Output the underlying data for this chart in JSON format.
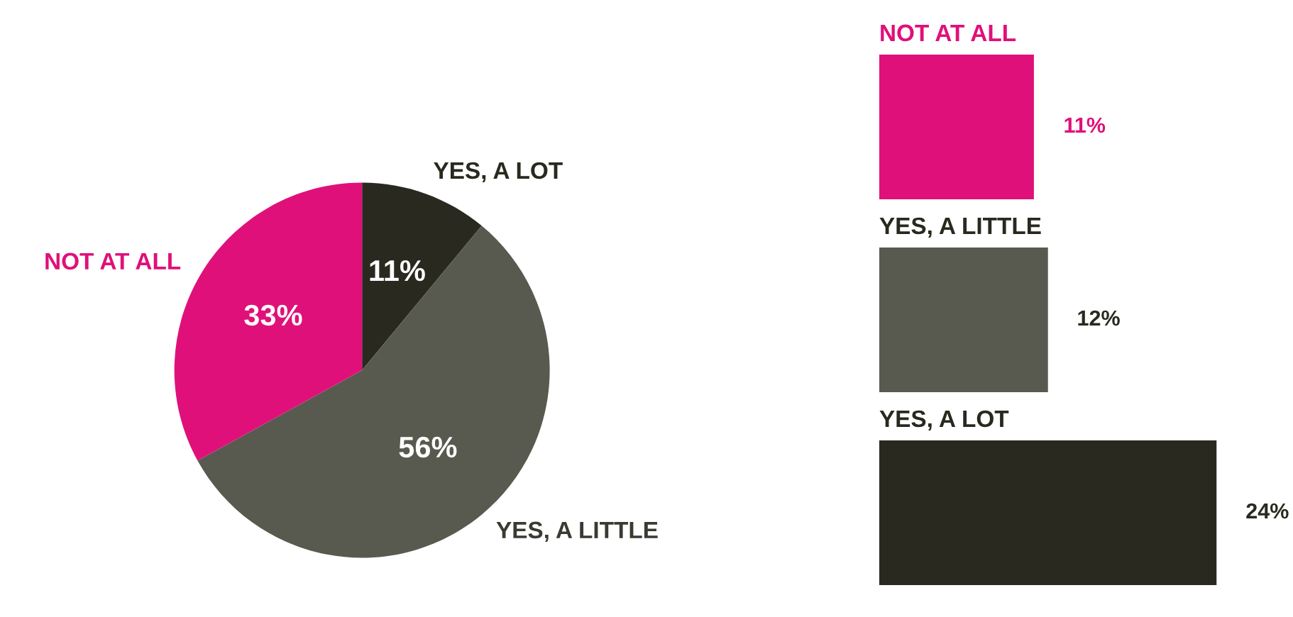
{
  "chart_data": [
    {
      "type": "pie",
      "categories": [
        "YES, A LOT",
        "YES, A LITTLE",
        "NOT AT ALL"
      ],
      "values": [
        11,
        56,
        33
      ],
      "colors": [
        "#29291f",
        "#595a4f",
        "#e0107a"
      ],
      "value_labels": [
        "11%",
        "56%",
        "33%"
      ]
    },
    {
      "type": "bar",
      "orientation": "horizontal",
      "categories": [
        "NOT AT ALL",
        "YES, A LITTLE",
        "YES, A LOT"
      ],
      "values": [
        11,
        12,
        24
      ],
      "colors": [
        "#e0107a",
        "#595a4f",
        "#29291f"
      ],
      "value_labels": [
        "11%",
        "12%",
        "24%"
      ]
    }
  ]
}
